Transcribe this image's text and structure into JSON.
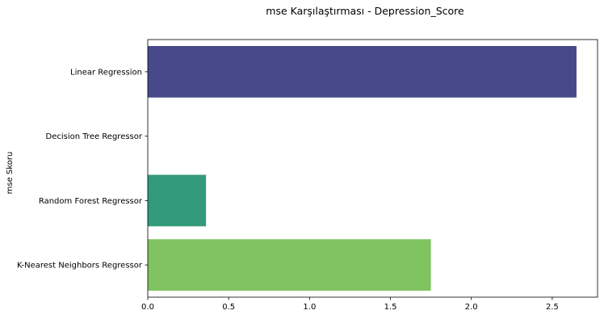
{
  "chart_data": {
    "type": "bar",
    "orientation": "horizontal",
    "title": "mse Karşılaştırması - Depression_Score",
    "xlabel": "",
    "ylabel": "mse Skoru",
    "categories": [
      "Linear Regression",
      "Decision Tree Regressor",
      "Random Forest Regressor",
      "K-Nearest Neighbors Regressor"
    ],
    "values": [
      2.65,
      0.0,
      0.36,
      1.75
    ],
    "colors": [
      "#48498a",
      "#3b528b",
      "#339a7a",
      "#80c361"
    ],
    "xlim": [
      0,
      2.78
    ],
    "xticks": [
      0.0,
      0.5,
      1.0,
      1.5,
      2.0,
      2.5
    ],
    "xtick_labels": [
      "0.0",
      "0.5",
      "1.0",
      "1.5",
      "2.0",
      "2.5"
    ],
    "grid": false,
    "legend": "none"
  }
}
